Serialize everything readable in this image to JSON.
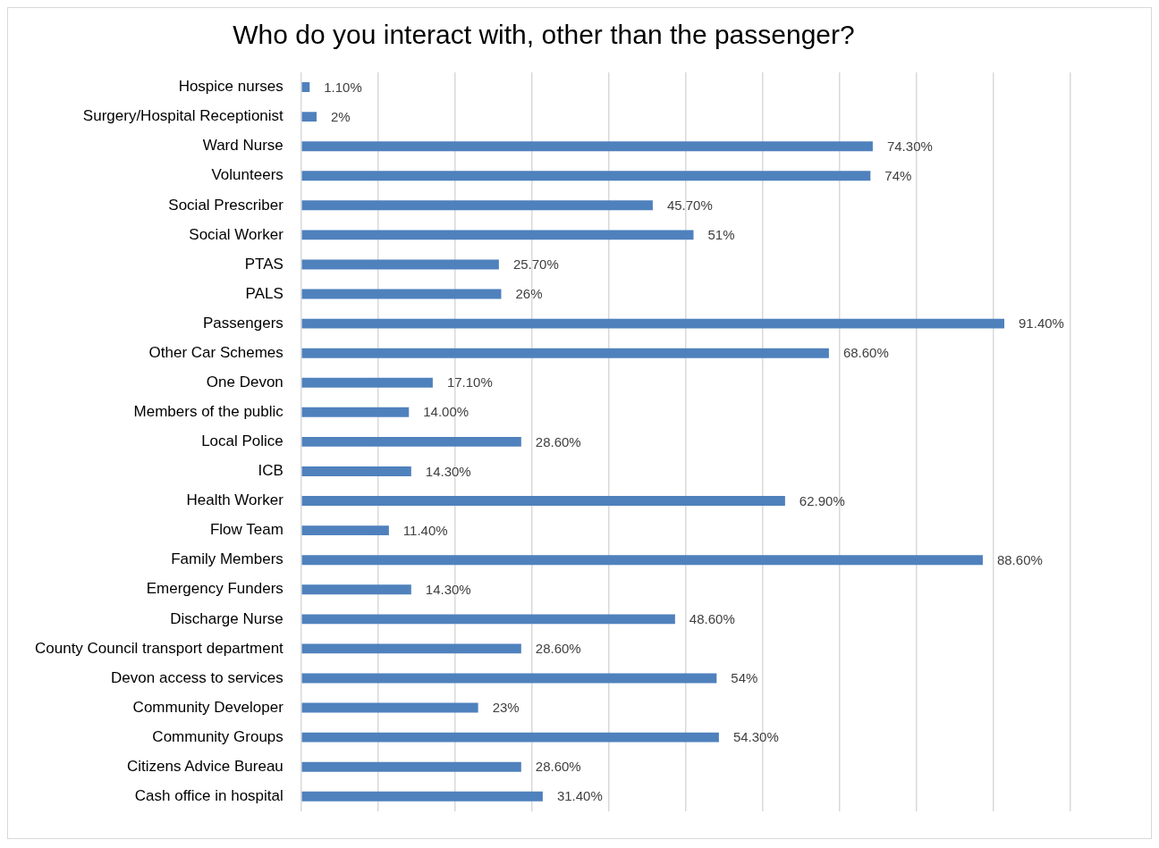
{
  "chart_data": {
    "type": "bar",
    "orientation": "horizontal",
    "title": "Who do you interact with, other than the passenger?",
    "categories": [
      "Hospice nurses",
      "Surgery/Hospital Receptionist",
      "Ward Nurse",
      "Volunteers",
      "Social Prescriber",
      "Social Worker",
      "PTAS",
      "PALS",
      "Passengers",
      "Other Car Schemes",
      "One Devon",
      "Members of the public",
      "Local Police",
      "ICB",
      "Health Worker",
      "Flow Team",
      "Family Members",
      "Emergency Funders",
      "Discharge Nurse",
      "County Council transport department",
      "Devon access to services",
      "Community Developer",
      "Community Groups",
      "Citizens Advice Bureau",
      "Cash office in hospital"
    ],
    "values": [
      1.1,
      2,
      74.3,
      74,
      45.7,
      51,
      25.7,
      26,
      91.4,
      68.6,
      17.1,
      14,
      28.6,
      14.3,
      62.9,
      11.4,
      88.6,
      14.3,
      48.6,
      28.6,
      54,
      23,
      54.3,
      28.6,
      31.4
    ],
    "value_labels": [
      "1.10%",
      "2%",
      "74.30%",
      "74%",
      "45.70%",
      "51%",
      "25.70%",
      "26%",
      "91.40%",
      "68.60%",
      "17.10%",
      "14.00%",
      "28.60%",
      "14.30%",
      "62.90%",
      "11.40%",
      "88.60%",
      "14.30%",
      "48.60%",
      "28.60%",
      "54%",
      "23%",
      "54.30%",
      "28.60%",
      "31.40%"
    ],
    "color": "#4f81bd",
    "xlim": [
      0,
      100
    ],
    "xticks": [
      {
        "value": 0,
        "label": null
      },
      {
        "value": 10,
        "label": null
      },
      {
        "value": 20,
        "label": null
      },
      {
        "value": 30,
        "label": null
      },
      {
        "value": 40,
        "label": null
      },
      {
        "value": 50,
        "label": null
      },
      {
        "value": 60,
        "label": null
      },
      {
        "value": 70,
        "label": null
      },
      {
        "value": 80,
        "label": null
      },
      {
        "value": 90,
        "label": null
      },
      {
        "value": 100,
        "label": null
      }
    ],
    "grid": "x",
    "tick_labels": "y",
    "legend": false
  }
}
